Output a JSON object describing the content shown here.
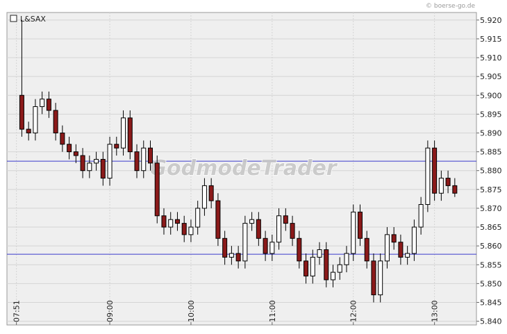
{
  "chart_data": {
    "type": "candlestick",
    "title": "L&SAX",
    "credit": "© boerse-go.de",
    "watermark": "GodmodeTrader",
    "x": [
      "07:55",
      "08:00",
      "08:05",
      "08:10",
      "08:15",
      "08:20",
      "08:25",
      "08:30",
      "08:35",
      "08:40",
      "08:45",
      "08:50",
      "08:55",
      "09:00",
      "09:05",
      "09:10",
      "09:15",
      "09:20",
      "09:25",
      "09:30",
      "09:35",
      "09:40",
      "09:45",
      "09:50",
      "09:55",
      "10:00",
      "10:05",
      "10:10",
      "10:15",
      "10:20",
      "10:25",
      "10:30",
      "10:35",
      "10:40",
      "10:45",
      "10:50",
      "10:55",
      "11:00",
      "11:05",
      "11:10",
      "11:15",
      "11:20",
      "11:25",
      "11:30",
      "11:35",
      "11:40",
      "11:45",
      "11:50",
      "11:55",
      "12:00",
      "12:05",
      "12:10",
      "12:15",
      "12:20",
      "12:25",
      "12:30",
      "12:35",
      "12:40",
      "12:45",
      "12:50",
      "12:55",
      "13:00",
      "13:05",
      "13:10",
      "13:15"
    ],
    "open": [
      5.9,
      5.891,
      5.89,
      5.897,
      5.899,
      5.896,
      5.89,
      5.887,
      5.885,
      5.884,
      5.88,
      5.882,
      5.883,
      5.878,
      5.887,
      5.886,
      5.894,
      5.885,
      5.88,
      5.886,
      5.882,
      5.868,
      5.865,
      5.867,
      5.866,
      5.863,
      5.865,
      5.87,
      5.876,
      5.872,
      5.862,
      5.857,
      5.858,
      5.856,
      5.866,
      5.867,
      5.862,
      5.858,
      5.861,
      5.868,
      5.866,
      5.862,
      5.856,
      5.852,
      5.857,
      5.859,
      5.851,
      5.853,
      5.855,
      5.858,
      5.869,
      5.862,
      5.856,
      5.847,
      5.856,
      5.863,
      5.861,
      5.857,
      5.858,
      5.865,
      5.871,
      5.886,
      5.874,
      5.878,
      5.876
    ],
    "high": [
      5.92,
      5.893,
      5.899,
      5.901,
      5.901,
      5.898,
      5.892,
      5.889,
      5.887,
      5.886,
      5.884,
      5.885,
      5.885,
      5.889,
      5.889,
      5.896,
      5.896,
      5.887,
      5.888,
      5.888,
      5.884,
      5.87,
      5.869,
      5.869,
      5.868,
      5.867,
      5.872,
      5.878,
      5.878,
      5.874,
      5.864,
      5.86,
      5.86,
      5.868,
      5.869,
      5.869,
      5.864,
      5.863,
      5.87,
      5.87,
      5.868,
      5.864,
      5.858,
      5.859,
      5.861,
      5.861,
      5.855,
      5.857,
      5.86,
      5.871,
      5.871,
      5.864,
      5.858,
      5.858,
      5.865,
      5.865,
      5.863,
      5.86,
      5.867,
      5.873,
      5.888,
      5.888,
      5.88,
      5.88,
      5.878
    ],
    "low": [
      5.889,
      5.888,
      5.888,
      5.895,
      5.894,
      5.888,
      5.885,
      5.883,
      5.882,
      5.878,
      5.878,
      5.88,
      5.876,
      5.876,
      5.884,
      5.884,
      5.883,
      5.878,
      5.878,
      5.88,
      5.866,
      5.863,
      5.863,
      5.864,
      5.861,
      5.861,
      5.863,
      5.868,
      5.87,
      5.86,
      5.855,
      5.855,
      5.854,
      5.854,
      5.864,
      5.86,
      5.856,
      5.856,
      5.859,
      5.864,
      5.86,
      5.854,
      5.85,
      5.85,
      5.855,
      5.849,
      5.849,
      5.851,
      5.853,
      5.856,
      5.86,
      5.854,
      5.845,
      5.845,
      5.854,
      5.859,
      5.855,
      5.855,
      5.856,
      5.863,
      5.869,
      5.872,
      5.872,
      5.874,
      5.873
    ],
    "close": [
      5.891,
      5.89,
      5.897,
      5.899,
      5.896,
      5.89,
      5.887,
      5.885,
      5.884,
      5.88,
      5.882,
      5.883,
      5.878,
      5.887,
      5.886,
      5.894,
      5.885,
      5.88,
      5.886,
      5.882,
      5.868,
      5.865,
      5.867,
      5.866,
      5.863,
      5.865,
      5.87,
      5.876,
      5.872,
      5.862,
      5.857,
      5.858,
      5.856,
      5.866,
      5.867,
      5.862,
      5.858,
      5.861,
      5.868,
      5.866,
      5.862,
      5.856,
      5.852,
      5.857,
      5.859,
      5.851,
      5.853,
      5.855,
      5.858,
      5.869,
      5.862,
      5.856,
      5.847,
      5.856,
      5.863,
      5.861,
      5.857,
      5.858,
      5.865,
      5.871,
      5.886,
      5.874,
      5.878,
      5.876,
      5.874
    ],
    "up_color": "#ffffff",
    "down_color": "#8b1a1a",
    "hlines": [
      5.8825,
      5.8578
    ],
    "hline_color": "#3a3acc",
    "xlim": [
      "07:44",
      "13:31"
    ],
    "xticks": [
      "07:51",
      "09:00",
      "10:00",
      "11:00",
      "12:00",
      "13:00"
    ],
    "ylim": [
      5.839,
      5.922
    ],
    "yticks": [
      {
        "value": 5.84,
        "label": "5.840"
      },
      {
        "value": 5.845,
        "label": "5.845"
      },
      {
        "value": 5.85,
        "label": "5.850"
      },
      {
        "value": 5.855,
        "label": "5.855"
      },
      {
        "value": 5.86,
        "label": "5.860"
      },
      {
        "value": 5.865,
        "label": "5.865"
      },
      {
        "value": 5.87,
        "label": "5.870"
      },
      {
        "value": 5.875,
        "label": "5.875"
      },
      {
        "value": 5.88,
        "label": "5.880"
      },
      {
        "value": 5.885,
        "label": "5.885"
      },
      {
        "value": 5.89,
        "label": "5.890"
      },
      {
        "value": 5.895,
        "label": "5.895"
      },
      {
        "value": 5.9,
        "label": "5.900"
      },
      {
        "value": 5.905,
        "label": "5.905"
      },
      {
        "value": 5.91,
        "label": "5.910"
      },
      {
        "value": 5.915,
        "label": "5.915"
      },
      {
        "value": 5.92,
        "label": "5.920"
      }
    ],
    "grid": true
  }
}
